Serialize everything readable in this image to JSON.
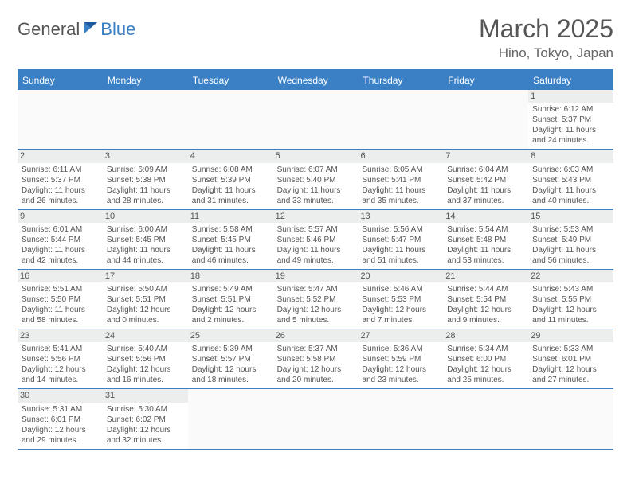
{
  "logo": {
    "general": "General",
    "blue": "Blue"
  },
  "title": "March 2025",
  "location": "Hino, Tokyo, Japan",
  "colors": {
    "accent": "#3b7fc4",
    "header_bg": "#eceded",
    "text": "#555555",
    "border": "#3b7fc4"
  },
  "weekdays": [
    "Sunday",
    "Monday",
    "Tuesday",
    "Wednesday",
    "Thursday",
    "Friday",
    "Saturday"
  ],
  "weeks": [
    [
      null,
      null,
      null,
      null,
      null,
      null,
      {
        "n": "1",
        "sr": "6:12 AM",
        "ss": "5:37 PM",
        "dl": "11 hours and 24 minutes."
      }
    ],
    [
      {
        "n": "2",
        "sr": "6:11 AM",
        "ss": "5:37 PM",
        "dl": "11 hours and 26 minutes."
      },
      {
        "n": "3",
        "sr": "6:09 AM",
        "ss": "5:38 PM",
        "dl": "11 hours and 28 minutes."
      },
      {
        "n": "4",
        "sr": "6:08 AM",
        "ss": "5:39 PM",
        "dl": "11 hours and 31 minutes."
      },
      {
        "n": "5",
        "sr": "6:07 AM",
        "ss": "5:40 PM",
        "dl": "11 hours and 33 minutes."
      },
      {
        "n": "6",
        "sr": "6:05 AM",
        "ss": "5:41 PM",
        "dl": "11 hours and 35 minutes."
      },
      {
        "n": "7",
        "sr": "6:04 AM",
        "ss": "5:42 PM",
        "dl": "11 hours and 37 minutes."
      },
      {
        "n": "8",
        "sr": "6:03 AM",
        "ss": "5:43 PM",
        "dl": "11 hours and 40 minutes."
      }
    ],
    [
      {
        "n": "9",
        "sr": "6:01 AM",
        "ss": "5:44 PM",
        "dl": "11 hours and 42 minutes."
      },
      {
        "n": "10",
        "sr": "6:00 AM",
        "ss": "5:45 PM",
        "dl": "11 hours and 44 minutes."
      },
      {
        "n": "11",
        "sr": "5:58 AM",
        "ss": "5:45 PM",
        "dl": "11 hours and 46 minutes."
      },
      {
        "n": "12",
        "sr": "5:57 AM",
        "ss": "5:46 PM",
        "dl": "11 hours and 49 minutes."
      },
      {
        "n": "13",
        "sr": "5:56 AM",
        "ss": "5:47 PM",
        "dl": "11 hours and 51 minutes."
      },
      {
        "n": "14",
        "sr": "5:54 AM",
        "ss": "5:48 PM",
        "dl": "11 hours and 53 minutes."
      },
      {
        "n": "15",
        "sr": "5:53 AM",
        "ss": "5:49 PM",
        "dl": "11 hours and 56 minutes."
      }
    ],
    [
      {
        "n": "16",
        "sr": "5:51 AM",
        "ss": "5:50 PM",
        "dl": "11 hours and 58 minutes."
      },
      {
        "n": "17",
        "sr": "5:50 AM",
        "ss": "5:51 PM",
        "dl": "12 hours and 0 minutes."
      },
      {
        "n": "18",
        "sr": "5:49 AM",
        "ss": "5:51 PM",
        "dl": "12 hours and 2 minutes."
      },
      {
        "n": "19",
        "sr": "5:47 AM",
        "ss": "5:52 PM",
        "dl": "12 hours and 5 minutes."
      },
      {
        "n": "20",
        "sr": "5:46 AM",
        "ss": "5:53 PM",
        "dl": "12 hours and 7 minutes."
      },
      {
        "n": "21",
        "sr": "5:44 AM",
        "ss": "5:54 PM",
        "dl": "12 hours and 9 minutes."
      },
      {
        "n": "22",
        "sr": "5:43 AM",
        "ss": "5:55 PM",
        "dl": "12 hours and 11 minutes."
      }
    ],
    [
      {
        "n": "23",
        "sr": "5:41 AM",
        "ss": "5:56 PM",
        "dl": "12 hours and 14 minutes."
      },
      {
        "n": "24",
        "sr": "5:40 AM",
        "ss": "5:56 PM",
        "dl": "12 hours and 16 minutes."
      },
      {
        "n": "25",
        "sr": "5:39 AM",
        "ss": "5:57 PM",
        "dl": "12 hours and 18 minutes."
      },
      {
        "n": "26",
        "sr": "5:37 AM",
        "ss": "5:58 PM",
        "dl": "12 hours and 20 minutes."
      },
      {
        "n": "27",
        "sr": "5:36 AM",
        "ss": "5:59 PM",
        "dl": "12 hours and 23 minutes."
      },
      {
        "n": "28",
        "sr": "5:34 AM",
        "ss": "6:00 PM",
        "dl": "12 hours and 25 minutes."
      },
      {
        "n": "29",
        "sr": "5:33 AM",
        "ss": "6:01 PM",
        "dl": "12 hours and 27 minutes."
      }
    ],
    [
      {
        "n": "30",
        "sr": "5:31 AM",
        "ss": "6:01 PM",
        "dl": "12 hours and 29 minutes."
      },
      {
        "n": "31",
        "sr": "5:30 AM",
        "ss": "6:02 PM",
        "dl": "12 hours and 32 minutes."
      },
      null,
      null,
      null,
      null,
      null
    ]
  ],
  "labels": {
    "sunrise": "Sunrise: ",
    "sunset": "Sunset: ",
    "daylight": "Daylight: "
  }
}
